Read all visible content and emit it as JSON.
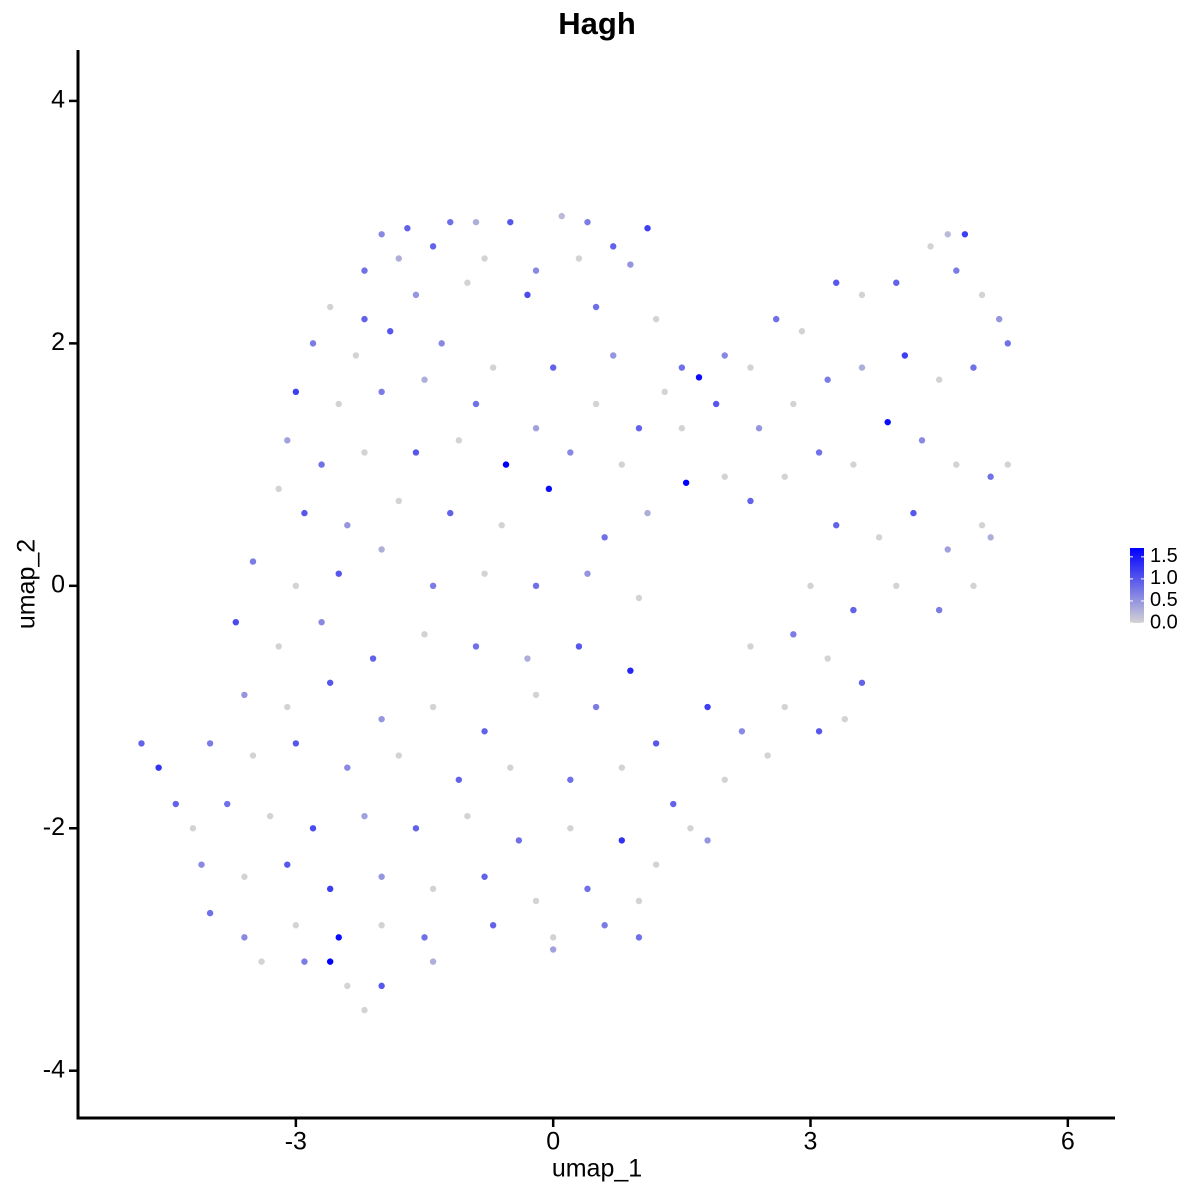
{
  "chart_data": {
    "type": "scatter",
    "title": "Hagh",
    "xlabel": "umap_1",
    "ylabel": "umap_2",
    "xlim": [
      -5.54,
      6.55
    ],
    "ylim": [
      -4.39,
      4.42
    ],
    "xticks": [
      -3,
      0,
      3,
      6
    ],
    "yticks": [
      -4,
      -2,
      0,
      2,
      4
    ],
    "color_low": "#d3d3d3",
    "color_high": "#0000ff",
    "colorlim": [
      0,
      1.7
    ],
    "colorbar_ticks": [
      {
        "value": 0,
        "label": "0.0"
      },
      0.5,
      {
        "value": 1,
        "label": "1.0"
      },
      1.5
    ],
    "x": [
      -2.0,
      -1.7,
      -1.2,
      -0.9,
      -0.5,
      0.1,
      0.4,
      0.7,
      1.1,
      -2.2,
      -1.8,
      -1.4,
      -0.8,
      -0.2,
      0.3,
      0.9,
      -2.6,
      -2.2,
      -1.6,
      -1.0,
      -0.3,
      0.5,
      1.2,
      -2.8,
      -2.3,
      -1.9,
      -1.3,
      -0.7,
      0.0,
      0.7,
      1.3,
      -3.0,
      -2.5,
      -2.0,
      -1.5,
      -0.9,
      -0.2,
      0.5,
      1.0,
      -3.1,
      -2.7,
      -2.2,
      -1.6,
      -1.1,
      -0.55,
      0.2,
      0.8,
      -3.2,
      -2.9,
      -2.4,
      -1.8,
      -1.2,
      -0.6,
      -0.05,
      0.6,
      1.1,
      -3.5,
      -3.0,
      -2.5,
      -2.0,
      -1.4,
      -0.8,
      -0.2,
      0.4,
      1.0,
      -3.7,
      -3.2,
      -2.7,
      -2.1,
      -1.5,
      -0.9,
      -0.3,
      0.3,
      0.9,
      -3.6,
      -3.1,
      -2.6,
      -2.0,
      -1.4,
      -0.8,
      -0.2,
      0.5,
      1.2,
      -4.0,
      -3.5,
      -3.0,
      -2.4,
      -1.8,
      -1.1,
      -0.5,
      0.2,
      0.8,
      1.4,
      -4.8,
      -4.6,
      -4.4,
      -4.2,
      -3.8,
      -3.3,
      -2.8,
      -2.2,
      -1.6,
      -1.0,
      -0.4,
      0.2,
      0.8,
      1.6,
      -4.1,
      -3.6,
      -3.1,
      -2.6,
      -2.0,
      -1.4,
      -0.8,
      -0.2,
      0.4,
      1.0,
      -4.0,
      -3.6,
      -3.0,
      -2.5,
      -2.0,
      -1.5,
      -0.7,
      0.0,
      0.6,
      -3.4,
      -2.9,
      -2.6,
      -2.4,
      -2.2,
      -2.0,
      -1.4,
      0.0,
      1.5,
      1.7,
      2.0,
      2.3,
      2.6,
      2.9,
      3.3,
      3.6,
      4.0,
      4.4,
      4.6,
      4.8,
      4.7,
      5.0,
      5.2,
      5.3,
      1.5,
      1.9,
      2.4,
      2.8,
      3.2,
      3.6,
      4.1,
      4.5,
      4.9,
      1.55,
      2.0,
      2.3,
      2.7,
      3.1,
      3.5,
      3.9,
      4.3,
      4.7,
      5.1,
      5.3,
      3.3,
      3.8,
      4.2,
      4.6,
      5.0,
      3.0,
      3.5,
      4.0,
      4.5,
      4.9,
      5.1,
      2.3,
      2.8,
      3.2,
      3.6,
      1.8,
      2.2,
      2.7,
      3.1,
      3.4,
      2.0,
      2.5,
      1.8,
      1.2,
      1.0
    ],
    "y": [
      2.9,
      2.95,
      3.0,
      3.0,
      3.0,
      3.05,
      3.0,
      2.8,
      2.95,
      2.6,
      2.7,
      2.8,
      2.7,
      2.6,
      2.7,
      2.65,
      2.3,
      2.2,
      2.4,
      2.5,
      2.4,
      2.3,
      2.2,
      2.0,
      1.9,
      2.1,
      2.0,
      1.8,
      1.8,
      1.9,
      1.6,
      1.6,
      1.5,
      1.6,
      1.7,
      1.5,
      1.3,
      1.5,
      1.3,
      1.2,
      1.0,
      1.1,
      1.1,
      1.2,
      1.0,
      1.1,
      1.0,
      0.8,
      0.6,
      0.5,
      0.7,
      0.6,
      0.5,
      0.8,
      0.4,
      0.6,
      0.2,
      0,
      0.1,
      0.3,
      0,
      0.1,
      0,
      0.1,
      -0.1,
      -0.3,
      -0.5,
      -0.3,
      -0.6,
      -0.4,
      -0.5,
      -0.6,
      -0.5,
      -0.7,
      -0.9,
      -1.0,
      -0.8,
      -1.1,
      -1.0,
      -1.2,
      -0.9,
      -1.0,
      -1.3,
      -1.3,
      -1.4,
      -1.3,
      -1.5,
      -1.4,
      -1.6,
      -1.5,
      -1.6,
      -1.5,
      -1.8,
      -1.3,
      -1.5,
      -1.8,
      -2.0,
      -1.8,
      -1.9,
      -2.0,
      -1.9,
      -2.0,
      -1.9,
      -2.1,
      -2.0,
      -2.1,
      -2.0,
      -2.3,
      -2.4,
      -2.3,
      -2.5,
      -2.4,
      -2.5,
      -2.4,
      -2.6,
      -2.5,
      -2.6,
      -2.7,
      -2.9,
      -2.8,
      -2.9,
      -2.8,
      -2.9,
      -2.8,
      -2.9,
      -2.8,
      -3.1,
      -3.1,
      -3.1,
      -3.3,
      -3.5,
      -3.3,
      -3.1,
      -3.0,
      1.8,
      1.72,
      1.9,
      1.8,
      2.2,
      2.1,
      2.5,
      2.4,
      2.5,
      2.8,
      2.9,
      2.9,
      2.6,
      2.4,
      2.2,
      2.0,
      1.3,
      1.5,
      1.3,
      1.5,
      1.7,
      1.8,
      1.9,
      1.7,
      1.8,
      0.85,
      0.9,
      0.7,
      0.9,
      1.1,
      1.0,
      1.35,
      1.2,
      1.0,
      0.9,
      1.0,
      0.5,
      0.4,
      0.6,
      0.3,
      0.5,
      0,
      -0.2,
      0,
      -0.2,
      0,
      0.4,
      -0.5,
      -0.4,
      -0.6,
      -0.8,
      -1.0,
      -1.2,
      -1.0,
      -1.2,
      -1.1,
      -1.6,
      -1.4,
      -2.1,
      -2.3,
      -2.9
    ],
    "values": [
      0.6,
      0.9,
      0.8,
      0.3,
      1.0,
      0.2,
      0.7,
      0.9,
      1.2,
      0.8,
      0.3,
      0.9,
      0,
      0.6,
      0,
      0.5,
      0,
      0.9,
      0.5,
      0,
      1.1,
      0.8,
      0,
      0.7,
      0,
      1.0,
      0.6,
      0,
      0.9,
      0.5,
      0,
      1.2,
      0,
      0.7,
      0.3,
      0.8,
      0.4,
      0,
      0.9,
      0.4,
      0.8,
      0,
      1.0,
      0,
      1.7,
      0.6,
      0,
      0,
      1.0,
      0.5,
      0,
      0.9,
      0,
      1.6,
      0.8,
      0.3,
      0.7,
      0,
      1.0,
      0.3,
      0.7,
      0,
      0.8,
      0.5,
      0,
      1.1,
      0,
      0.6,
      0.9,
      0,
      0.8,
      0.3,
      1.0,
      1.4,
      0.5,
      0,
      1.0,
      0.5,
      0,
      0.9,
      0,
      0.7,
      1.0,
      0.7,
      0,
      1.0,
      0.6,
      0,
      0.9,
      0,
      0.8,
      0,
      0.9,
      0.9,
      1.3,
      0.9,
      0,
      0.8,
      0,
      1.1,
      0.4,
      0.9,
      0,
      0.8,
      0,
      1.3,
      0,
      0.6,
      0,
      1.0,
      1.2,
      0.5,
      0,
      0.9,
      0,
      0.8,
      0,
      0.8,
      0.6,
      0,
      1.6,
      0,
      0.8,
      0.9,
      0,
      0.7,
      0,
      0.7,
      1.7,
      0,
      0,
      1.0,
      0.3,
      0.4,
      0.8,
      1.6,
      0.6,
      0,
      0.8,
      0,
      1.0,
      0,
      0.9,
      0,
      0.2,
      1.2,
      0.7,
      0,
      0.5,
      0.8,
      0,
      1.0,
      0.5,
      0,
      0.7,
      0.3,
      1.2,
      0,
      0.8,
      1.7,
      0,
      0.9,
      0,
      0.8,
      0,
      1.6,
      0.6,
      0,
      0.8,
      0,
      0.9,
      0,
      1.0,
      0.4,
      0,
      0,
      0.9,
      0,
      0.7,
      0,
      0.3,
      0,
      0.7,
      0,
      0.9,
      1.2,
      0.6,
      0,
      1.0,
      0,
      0,
      0,
      0.5,
      0,
      0.8
    ]
  }
}
